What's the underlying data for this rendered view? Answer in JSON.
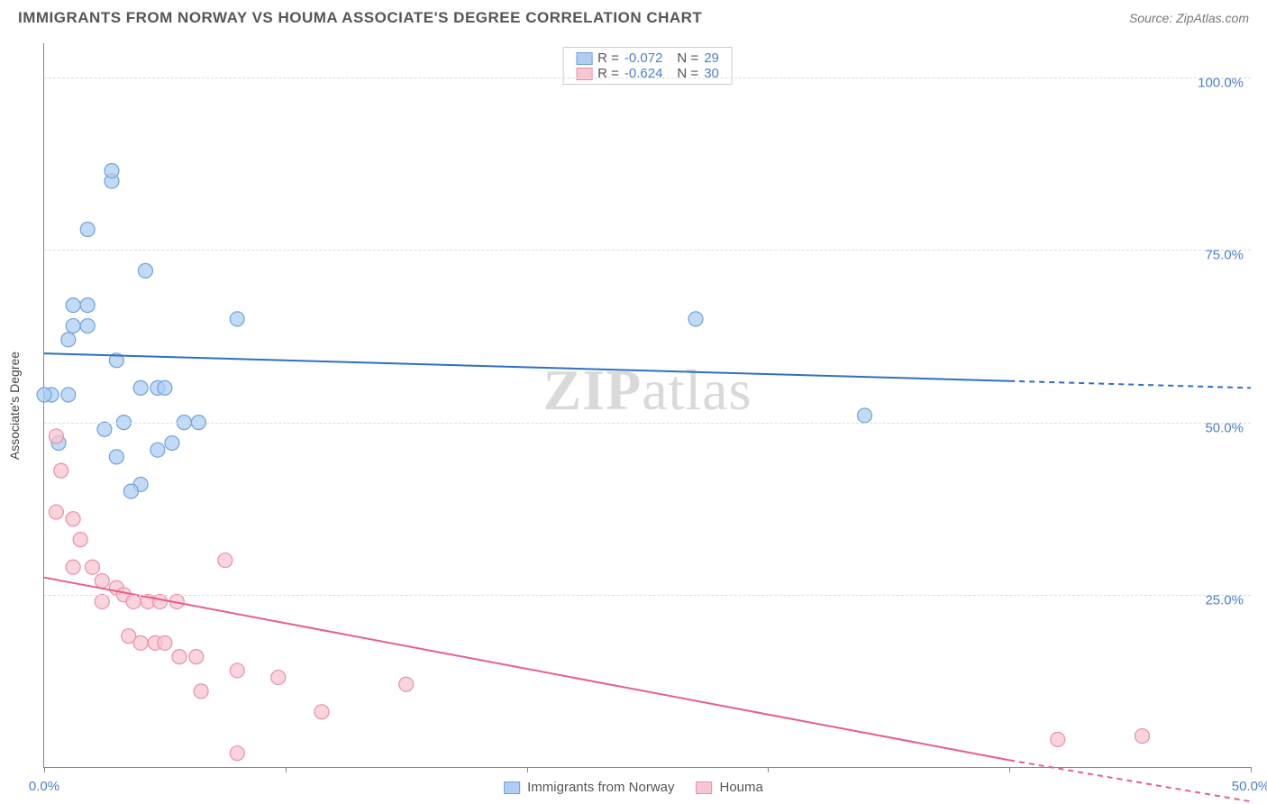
{
  "header": {
    "title": "IMMIGRANTS FROM NORWAY VS HOUMA ASSOCIATE'S DEGREE CORRELATION CHART",
    "source_prefix": "Source: ",
    "source_name": "ZipAtlas.com"
  },
  "watermark": {
    "zip": "ZIP",
    "atlas": "atlas"
  },
  "chart": {
    "type": "scatter",
    "ylabel": "Associate's Degree",
    "xlim": [
      0,
      50
    ],
    "ylim": [
      0,
      105
    ],
    "xticks": [
      {
        "v": 0,
        "label": "0.0%"
      },
      {
        "v": 10,
        "label": ""
      },
      {
        "v": 20,
        "label": ""
      },
      {
        "v": 30,
        "label": ""
      },
      {
        "v": 40,
        "label": ""
      },
      {
        "v": 50,
        "label": "50.0%"
      }
    ],
    "yticks": [
      {
        "v": 25,
        "label": "25.0%"
      },
      {
        "v": 50,
        "label": "50.0%"
      },
      {
        "v": 75,
        "label": "75.0%"
      },
      {
        "v": 100,
        "label": "100.0%"
      }
    ],
    "grid_color": "#dddddd",
    "background_color": "#ffffff",
    "axis_color": "#888888",
    "label_color": "#4a7fd0",
    "series": [
      {
        "name": "Immigrants from Norway",
        "color_fill": "#aecdf0",
        "color_stroke": "#6ea3dd",
        "marker_radius": 8,
        "marker_opacity": 0.75,
        "R": "-0.072",
        "N": "29",
        "regression": {
          "x1": 0,
          "y1": 60,
          "x2": 40,
          "y2": 56,
          "extrap_x2": 50,
          "extrap_y2": 55
        },
        "line_color": "#2f6fc4",
        "line_width": 2,
        "points": [
          [
            1,
            54
          ],
          [
            0.3,
            54
          ],
          [
            0,
            54
          ],
          [
            1.2,
            64
          ],
          [
            1.8,
            64
          ],
          [
            1.2,
            67
          ],
          [
            1.8,
            67
          ],
          [
            2.8,
            85
          ],
          [
            2.8,
            86.5
          ],
          [
            1.8,
            78
          ],
          [
            4.2,
            72
          ],
          [
            3.0,
            59
          ],
          [
            3.3,
            50
          ],
          [
            4,
            55
          ],
          [
            4.7,
            55
          ],
          [
            5,
            55
          ],
          [
            8,
            65
          ],
          [
            4.7,
            46
          ],
          [
            5.3,
            47
          ],
          [
            4.0,
            41
          ],
          [
            3.6,
            40
          ],
          [
            3,
            45
          ],
          [
            2.5,
            49
          ],
          [
            27,
            65
          ],
          [
            34,
            51
          ],
          [
            5.8,
            50
          ],
          [
            6.4,
            50
          ],
          [
            0.6,
            47
          ],
          [
            1.0,
            62
          ]
        ]
      },
      {
        "name": "Houma",
        "color_fill": "#f7c6d2",
        "color_stroke": "#e98fa9",
        "marker_radius": 8,
        "marker_opacity": 0.75,
        "R": "-0.624",
        "N": "30",
        "regression": {
          "x1": 0,
          "y1": 27.5,
          "x2": 40,
          "y2": 1,
          "extrap_x2": 50,
          "extrap_y2": -5
        },
        "line_color": "#e85f86",
        "line_width": 2,
        "points": [
          [
            0.5,
            48
          ],
          [
            0.7,
            43
          ],
          [
            0.5,
            37
          ],
          [
            1.2,
            36
          ],
          [
            1.5,
            33
          ],
          [
            1.2,
            29
          ],
          [
            2.0,
            29
          ],
          [
            2.4,
            27
          ],
          [
            2.4,
            24
          ],
          [
            3.0,
            26
          ],
          [
            3.3,
            25
          ],
          [
            3.7,
            24
          ],
          [
            4.3,
            24
          ],
          [
            4.8,
            24
          ],
          [
            5.5,
            24
          ],
          [
            3.5,
            19
          ],
          [
            4.0,
            18
          ],
          [
            4.6,
            18
          ],
          [
            5.0,
            18
          ],
          [
            5.6,
            16
          ],
          [
            6.3,
            16
          ],
          [
            6.5,
            11
          ],
          [
            8.0,
            14
          ],
          [
            9.7,
            13
          ],
          [
            11.5,
            8
          ],
          [
            15.0,
            12
          ],
          [
            8.0,
            2
          ],
          [
            42,
            4
          ],
          [
            45.5,
            4.5
          ],
          [
            7.5,
            30
          ]
        ]
      }
    ],
    "bottom_legend": [
      {
        "label": "Immigrants from Norway",
        "fill": "#aecdf0",
        "stroke": "#6ea3dd"
      },
      {
        "label": "Houma",
        "fill": "#f7c6d2",
        "stroke": "#e98fa9"
      }
    ]
  }
}
